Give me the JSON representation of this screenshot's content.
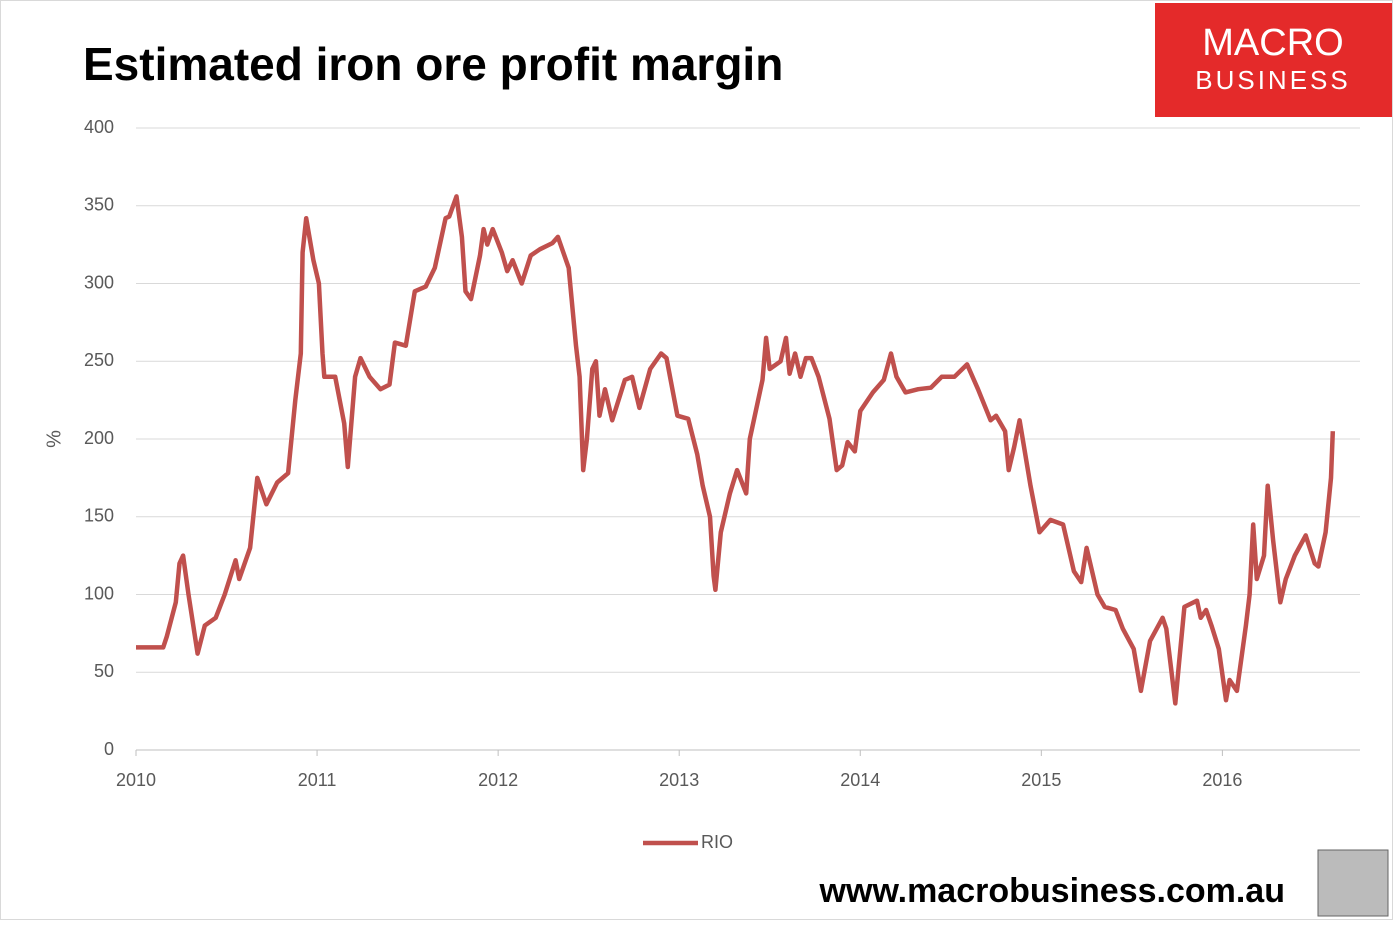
{
  "chart_data": {
    "type": "line",
    "title": "Estimated iron ore profit margin",
    "y_label": "%",
    "logo": [
      "MACRO",
      "BUSINESS"
    ],
    "source": "www.macrobusiness.com.au",
    "xlim": [
      2010,
      2016.76
    ],
    "xticks": [
      2010,
      2011,
      2012,
      2013,
      2014,
      2015,
      2016
    ],
    "ylim": [
      0,
      400
    ],
    "yticks": [
      0,
      50,
      100,
      150,
      200,
      250,
      300,
      350,
      400
    ],
    "grid": true,
    "legend": "bottom",
    "x": [
      2010.0,
      2010.15,
      2010.17,
      2010.22,
      2010.24,
      2010.26,
      2010.29,
      2010.34,
      2010.38,
      2010.44,
      2010.49,
      2010.55,
      2010.57,
      2010.63,
      2010.67,
      2010.72,
      2010.78,
      2010.84,
      2010.88,
      2010.91,
      2010.92,
      2010.94,
      2010.98,
      2011.01,
      2011.03,
      2011.04,
      2011.1,
      2011.15,
      2011.17,
      2011.21,
      2011.24,
      2011.29,
      2011.35,
      2011.4,
      2011.43,
      2011.49,
      2011.54,
      2011.6,
      2011.65,
      2011.71,
      2011.73,
      2011.77,
      2011.8,
      2011.82,
      2011.85,
      2011.9,
      2011.92,
      2011.94,
      2011.97,
      2012.02,
      2012.05,
      2012.08,
      2012.13,
      2012.18,
      2012.23,
      2012.3,
      2012.33,
      2012.39,
      2012.43,
      2012.45,
      2012.47,
      2012.49,
      2012.52,
      2012.54,
      2012.56,
      2012.59,
      2012.63,
      2012.7,
      2012.74,
      2012.78,
      2012.84,
      2012.9,
      2012.93,
      2012.99,
      2013.05,
      2013.1,
      2013.13,
      2013.17,
      2013.19,
      2013.2,
      2013.23,
      2013.28,
      2013.32,
      2013.37,
      2013.39,
      2013.46,
      2013.48,
      2013.5,
      2013.56,
      2013.59,
      2013.61,
      2013.64,
      2013.67,
      2013.7,
      2013.73,
      2013.77,
      2013.83,
      2013.87,
      2013.9,
      2013.93,
      2013.97,
      2014.0,
      2014.07,
      2014.13,
      2014.17,
      2014.2,
      2014.25,
      2014.32,
      2014.39,
      2014.45,
      2014.52,
      2014.59,
      2014.65,
      2014.72,
      2014.75,
      2014.8,
      2014.82,
      2014.85,
      2014.88,
      2014.94,
      2014.99,
      2015.05,
      2015.12,
      2015.18,
      2015.22,
      2015.25,
      2015.31,
      2015.35,
      2015.41,
      2015.45,
      2015.51,
      2015.55,
      2015.6,
      2015.67,
      2015.69,
      2015.74,
      2015.76,
      2015.79,
      2015.86,
      2015.88,
      2015.91,
      2015.94,
      2015.98,
      2016.02,
      2016.04,
      2016.08,
      2016.13,
      2016.15,
      2016.17,
      2016.19,
      2016.23,
      2016.25,
      2016.28,
      2016.32,
      2016.35,
      2016.4,
      2016.46,
      2016.51,
      2016.53,
      2016.57,
      2016.6,
      2016.61
    ],
    "series": [
      {
        "name": "RIO",
        "color": "#c0504d",
        "values": [
          66,
          66,
          73,
          95,
          120,
          125,
          100,
          62,
          80,
          85,
          100,
          122,
          110,
          130,
          175,
          158,
          172,
          178,
          225,
          255,
          320,
          342,
          315,
          300,
          255,
          240,
          240,
          210,
          182,
          240,
          252,
          240,
          232,
          235,
          262,
          260,
          295,
          298,
          310,
          342,
          343,
          356,
          330,
          295,
          290,
          318,
          335,
          325,
          335,
          320,
          308,
          315,
          300,
          318,
          322,
          326,
          330,
          310,
          260,
          240,
          180,
          200,
          245,
          250,
          215,
          232,
          212,
          238,
          240,
          220,
          245,
          255,
          252,
          215,
          213,
          190,
          170,
          150,
          112,
          103,
          140,
          165,
          180,
          165,
          200,
          238,
          265,
          245,
          250,
          265,
          242,
          255,
          240,
          252,
          252,
          240,
          213,
          180,
          183,
          198,
          192,
          218,
          230,
          238,
          255,
          240,
          230,
          232,
          233,
          240,
          240,
          248,
          232,
          212,
          215,
          205,
          180,
          195,
          212,
          170,
          140,
          148,
          145,
          115,
          108,
          130,
          100,
          92,
          90,
          78,
          65,
          38,
          70,
          85,
          78,
          30,
          55,
          92,
          96,
          85,
          90,
          80,
          65,
          32,
          45,
          38,
          80,
          100,
          145,
          110,
          125,
          170,
          135,
          95,
          110,
          125,
          138,
          120,
          118,
          140,
          175,
          205
        ]
      }
    ]
  }
}
